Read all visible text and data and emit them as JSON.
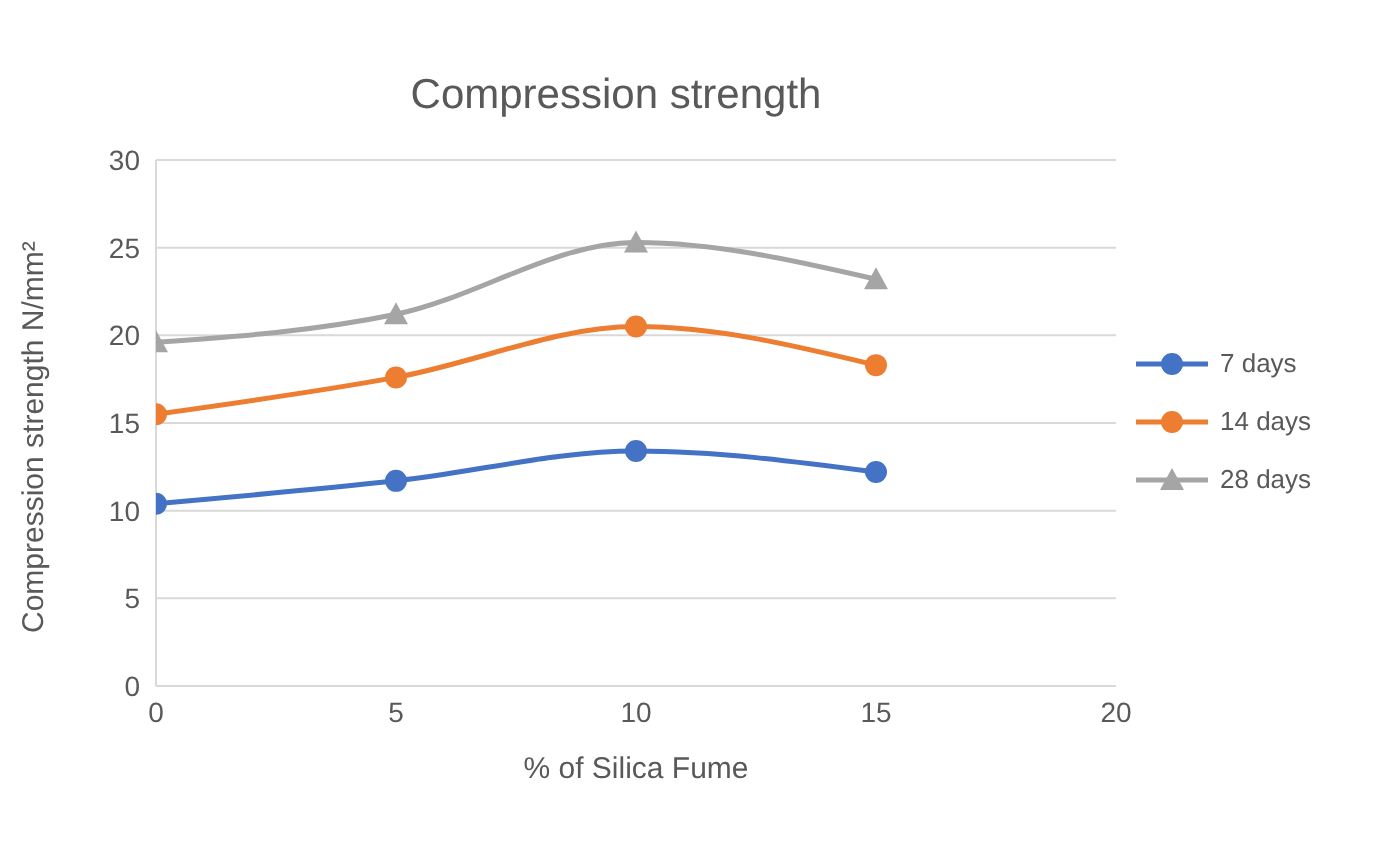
{
  "chart_data": {
    "type": "line",
    "title": "Compression strength",
    "xlabel": "% of Silica Fume",
    "ylabel": "Compression strength N/mm²",
    "x": [
      0,
      5,
      10,
      15
    ],
    "series": [
      {
        "name": "7 days",
        "color": "#4472c4",
        "marker": "circle",
        "values": [
          10.4,
          11.7,
          13.4,
          12.2
        ]
      },
      {
        "name": "14 days",
        "color": "#ed7d31",
        "marker": "circle",
        "values": [
          15.5,
          17.6,
          20.5,
          18.3
        ]
      },
      {
        "name": "28 days",
        "color": "#a5a5a5",
        "marker": "triangle",
        "values": [
          19.6,
          21.2,
          25.3,
          23.2
        ]
      }
    ],
    "xlim": [
      0,
      20
    ],
    "xticks": [
      0,
      5,
      10,
      15,
      20
    ],
    "ylim": [
      0,
      30
    ],
    "yticks": [
      0,
      5,
      10,
      15,
      20,
      25,
      30
    ],
    "grid": "y",
    "legend": "right"
  }
}
